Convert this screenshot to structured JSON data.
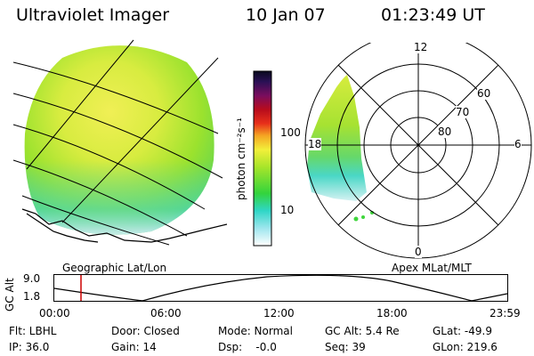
{
  "header": {
    "title": "Ultraviolet Imager",
    "date": "10 Jan 07",
    "time": "01:23:49 UT"
  },
  "colorbar": {
    "unit_label": "photon cm⁻²s⁻¹",
    "ticks": [
      "100",
      "10"
    ]
  },
  "geo_panel": {
    "label": "Geographic Lat/Lon"
  },
  "polar_panel": {
    "label": "Apex MLat/MLT",
    "mlt_labels": {
      "top": "12",
      "left": "18",
      "right": "6",
      "bottom": "0"
    },
    "lat_labels": [
      "60",
      "70",
      "80"
    ]
  },
  "altitude_plot": {
    "ylabel": "GC Alt",
    "y_ticks": [
      "9.0",
      "1.8"
    ],
    "x_ticks": [
      "00:00",
      "06:00",
      "12:00",
      "18:00",
      "23:59"
    ],
    "marker_time": "01:23:49",
    "colors": {
      "marker": "#cc0000",
      "curve": "#000000"
    }
  },
  "status": {
    "filter": "Flt: LBHL",
    "door": "Door: Closed",
    "mode": "Mode: Normal",
    "gc_alt": "GC Alt: 5.4 Re",
    "glat": "GLat: -49.9",
    "ip": "IP: 36.0",
    "gain": "Gain: 14",
    "dsp": "Dsp:    -0.0",
    "seq": "Seq: 39",
    "glon": "GLon: 219.6"
  },
  "colors": {
    "bg": "#ffffff",
    "aurora_green": "#8fe02a",
    "aurora_yellow": "#e8f04a",
    "teal": "#3fd6c8"
  }
}
